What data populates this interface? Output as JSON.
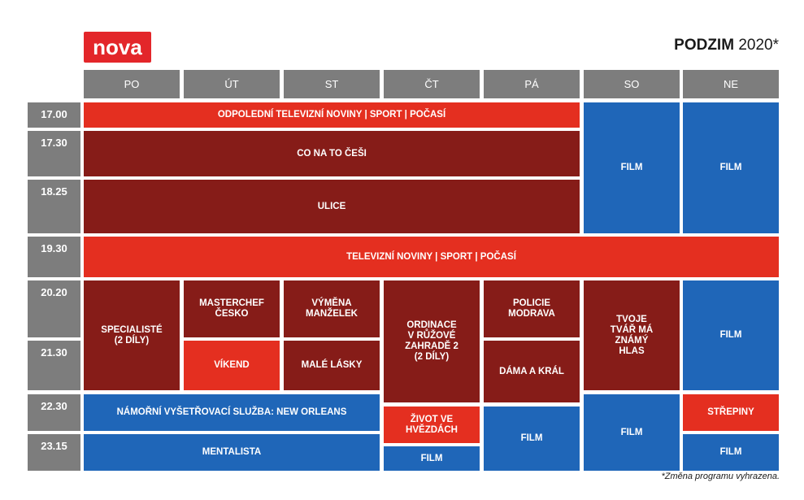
{
  "header": {
    "logo": "nova",
    "title_bold": "PODZIM",
    "title_year": " 2020*"
  },
  "days": [
    "PO",
    "ÚT",
    "ST",
    "ČT",
    "PÁ",
    "SO",
    "NE"
  ],
  "times": [
    "17.00",
    "17.30",
    "18.25",
    "19.30",
    "20.20",
    "21.30",
    "22.30",
    "23.15"
  ],
  "program": {
    "odpoledni_noviny": "ODPOLEDNÍ TELEVIZNÍ NOVINY | SPORT | POČASÍ",
    "co_na_to_cesi": "CO NA TO ČEŠI",
    "ulice": "ULICE",
    "film": "FILM",
    "televizni_noviny": "TELEVIZNÍ NOVINY | SPORT | POČASÍ",
    "specialiste": "SPECIALISTÉ\n(2 DÍLY)",
    "masterchef": "MASTERCHEF\nČESKO",
    "vymena_manzelek": "VÝMĚNA\nMANŽELEK",
    "ordinace": "ORDINACE\nV RŮŽOVÉ\nZAHRADĚ 2\n(2 DÍLY)",
    "policie_modrava": "POLICIE\nMODRAVA",
    "tvoje_tvar": "TVOJE\nTVÁŘ MÁ\nZNÁMÝ\nHLAS",
    "vikend": "VÍKEND",
    "male_lasky": "MALÉ LÁSKY",
    "dama_a_kral": "DÁMA A KRÁL",
    "ncis": "NÁMOŘNÍ VYŠETŘOVACÍ SLUŽBA: NEW ORLEANS",
    "zivot_ve_hvezdach": "ŽIVOT VE\nHVĚZDÁCH",
    "strepiny": "STŘEPINY",
    "mentalista": "MENTALISTA"
  },
  "footnote": "*Změna programu vyhrazena.",
  "colors": {
    "red": "#e42f20",
    "maroon": "#861c18",
    "blue": "#1f66b8",
    "gray": "#7d7d7d"
  }
}
